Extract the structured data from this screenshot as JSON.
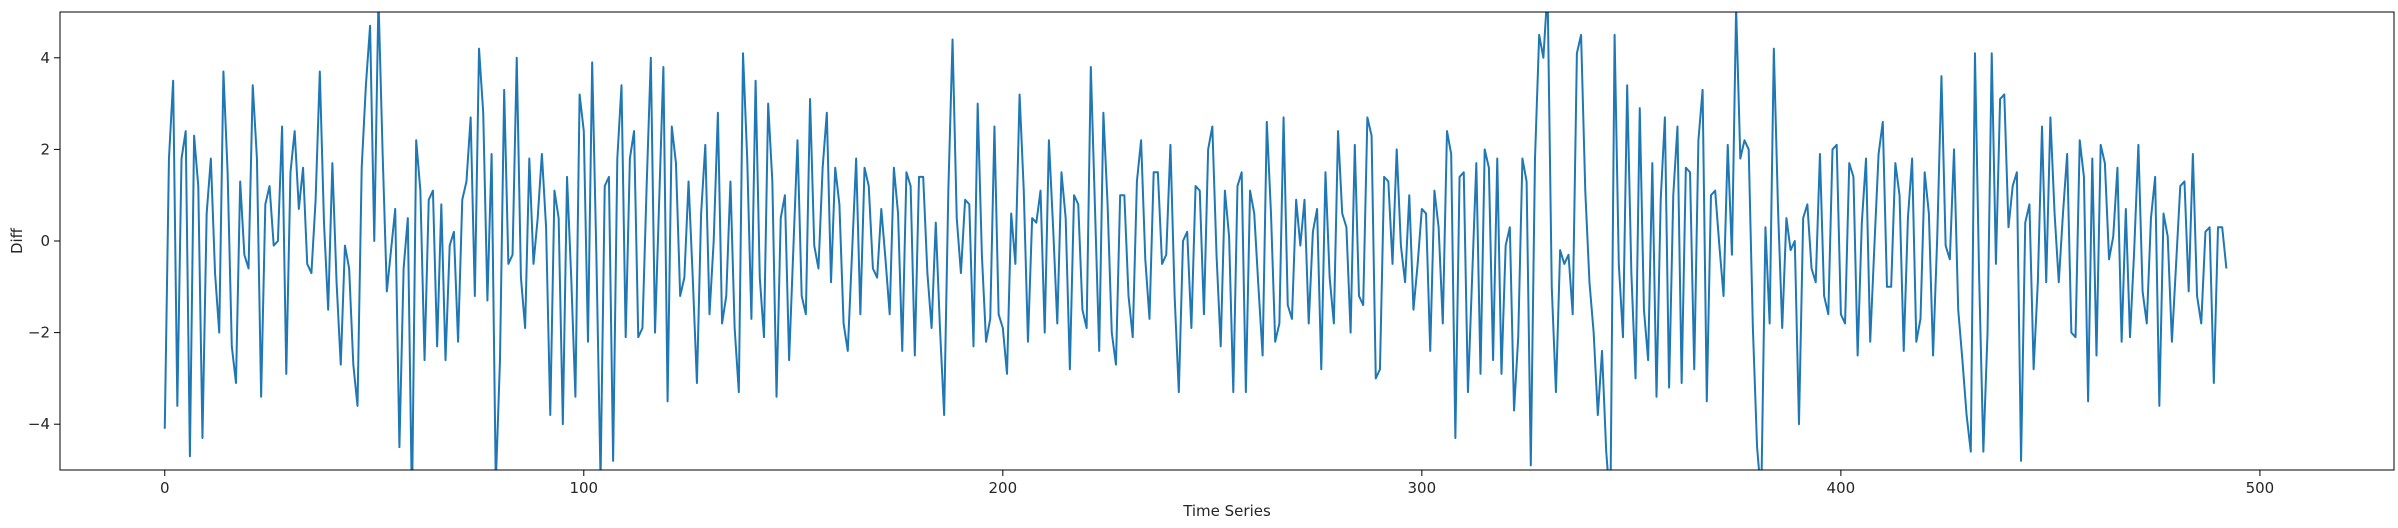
{
  "chart_data": {
    "type": "line",
    "xlabel": "Time Series",
    "ylabel": "Diff",
    "xlim": [
      -25,
      532
    ],
    "ylim": [
      -5,
      5
    ],
    "xticks": [
      0,
      100,
      200,
      300,
      400,
      500
    ],
    "yticks": [
      -4,
      -2,
      0,
      2,
      4
    ],
    "grid": false,
    "line_color": "#1f77b4",
    "series": [
      {
        "values": [
          -4.1,
          1.8,
          3.5,
          -3.6,
          1.8,
          2.4,
          -4.7,
          2.3,
          1.2,
          -4.3,
          0.6,
          1.8,
          -0.7,
          -2.0,
          3.7,
          1.5,
          -2.3,
          -3.1,
          1.3,
          -0.3,
          -0.6,
          3.4,
          1.8,
          -3.4,
          0.8,
          1.2,
          -0.1,
          0.0,
          2.5,
          -2.9,
          1.5,
          2.4,
          0.7,
          1.6,
          -0.5,
          -0.7,
          0.9,
          3.7,
          0.4,
          -1.5,
          1.7,
          -0.9,
          -2.7,
          -0.1,
          -0.6,
          -2.7,
          -3.6,
          1.6,
          3.4,
          4.7,
          0.0,
          5.3,
          1.9,
          -1.1,
          -0.2,
          0.7,
          -4.5,
          -0.6,
          0.5,
          -5.8,
          2.2,
          1.1,
          -2.6,
          0.9,
          1.1,
          -2.3,
          0.8,
          -2.6,
          -0.1,
          0.2,
          -2.2,
          0.9,
          1.3,
          2.7,
          -1.2,
          4.2,
          2.8,
          -1.3,
          1.9,
          -5.3,
          -2.6,
          3.3,
          -0.5,
          -0.3,
          4.0,
          -0.8,
          -1.9,
          1.8,
          -0.5,
          0.5,
          1.9,
          0.3,
          -3.8,
          1.1,
          0.5,
          -4.0,
          1.4,
          -0.8,
          -3.4,
          3.2,
          2.4,
          -2.2,
          3.9,
          -0.3,
          -5.2,
          1.2,
          1.4,
          -4.8,
          1.8,
          3.4,
          -2.1,
          1.8,
          2.4,
          -2.1,
          -1.9,
          1.2,
          4.0,
          -2.0,
          0.9,
          3.8,
          -3.5,
          2.5,
          1.7,
          -1.2,
          -0.8,
          1.3,
          -0.8,
          -3.1,
          0.6,
          2.1,
          -1.6,
          0.0,
          2.8,
          -1.8,
          -1.2,
          1.3,
          -1.9,
          -3.3,
          4.1,
          1.8,
          -1.7,
          3.5,
          -0.8,
          -2.1,
          3.0,
          1.3,
          -3.4,
          0.5,
          1.0,
          -2.6,
          -0.2,
          2.2,
          -1.2,
          -1.6,
          3.1,
          -0.1,
          -0.6,
          1.6,
          2.8,
          -0.9,
          1.6,
          0.8,
          -1.8,
          -2.4,
          -0.3,
          1.8,
          -1.6,
          1.6,
          1.2,
          -0.6,
          -0.8,
          0.7,
          -0.4,
          -1.6,
          1.6,
          0.6,
          -2.4,
          1.5,
          1.2,
          -2.5,
          1.4,
          1.4,
          -0.7,
          -1.9,
          0.4,
          -1.9,
          -3.8,
          1.1,
          4.4,
          0.5,
          -0.7,
          0.9,
          0.8,
          -2.3,
          3.0,
          -0.3,
          -2.2,
          -1.7,
          2.5,
          -1.6,
          -1.9,
          -2.9,
          0.6,
          -0.5,
          3.2,
          1.1,
          -2.2,
          0.5,
          0.4,
          1.1,
          -2.0,
          2.2,
          0.3,
          -1.8,
          1.5,
          0.5,
          -2.8,
          1.0,
          0.8,
          -1.5,
          -1.9,
          3.8,
          0.7,
          -2.4,
          2.8,
          0.8,
          -2.0,
          -2.7,
          1.0,
          1.0,
          -1.2,
          -2.1,
          1.3,
          2.2,
          -0.4,
          -1.7,
          1.5,
          1.5,
          -0.5,
          -0.3,
          2.1,
          -1.2,
          -3.3,
          0.0,
          0.2,
          -1.9,
          1.2,
          1.1,
          -1.6,
          2.0,
          2.5,
          -0.3,
          -2.3,
          1.1,
          0.1,
          -3.3,
          1.2,
          1.5,
          -3.3,
          1.1,
          0.6,
          -1.0,
          -2.5,
          2.6,
          0.6,
          -2.2,
          -1.8,
          2.7,
          -1.4,
          -1.7,
          0.9,
          -0.1,
          0.9,
          -1.8,
          0.2,
          0.7,
          -2.8,
          1.5,
          -0.8,
          -1.8,
          2.4,
          0.6,
          0.3,
          -2.0,
          2.1,
          -1.2,
          -1.4,
          2.7,
          2.3,
          -3.0,
          -2.8,
          1.4,
          1.3,
          -0.5,
          2.0,
          -0.1,
          -0.9,
          1.0,
          -1.5,
          -0.5,
          0.7,
          0.6,
          -2.4,
          1.1,
          0.3,
          -1.8,
          2.4,
          1.9,
          -4.3,
          1.4,
          1.5,
          -3.3,
          -0.8,
          1.7,
          -2.9,
          2.0,
          1.6,
          -2.6,
          1.8,
          -2.9,
          -0.1,
          0.3,
          -3.7,
          -2.1,
          1.8,
          1.3,
          -4.9,
          1.8,
          4.5,
          4.0,
          5.5,
          -1.0,
          -3.3,
          -0.2,
          -0.5,
          -0.3,
          -1.6,
          4.1,
          4.5,
          1.1,
          -0.9,
          -2.0,
          -3.8,
          -2.4,
          -4.6,
          -5.8,
          4.5,
          -0.5,
          -2.1,
          3.4,
          -0.7,
          -3.0,
          2.9,
          -1.5,
          -2.6,
          1.7,
          -3.4,
          0.9,
          2.7,
          -3.2,
          1.0,
          2.5,
          -3.1,
          1.6,
          1.5,
          -2.8,
          2.2,
          3.3,
          -3.5,
          1.0,
          1.1,
          -0.1,
          -1.2,
          2.1,
          -0.3,
          5.1,
          1.8,
          2.2,
          2.0,
          -1.9,
          -4.5,
          -5.6,
          0.3,
          -1.8,
          4.2,
          0.7,
          -1.9,
          0.5,
          -0.2,
          0.0,
          -4.0,
          0.5,
          0.8,
          -0.6,
          -0.9,
          1.9,
          -1.2,
          -1.6,
          2.0,
          2.1,
          -1.6,
          -1.8,
          1.7,
          1.4,
          -2.5,
          0.4,
          1.8,
          -2.2,
          -0.1,
          1.9,
          2.6,
          -1.0,
          -1.0,
          1.7,
          1.0,
          -2.4,
          0.5,
          1.8,
          -2.2,
          -1.7,
          1.5,
          0.6,
          -2.5,
          0.1,
          3.6,
          -0.1,
          -0.4,
          2.0,
          -1.5,
          -2.6,
          -3.8,
          -4.6,
          4.1,
          -0.8,
          -4.6,
          -2.0,
          4.1,
          -0.5,
          3.1,
          3.2,
          0.3,
          1.2,
          1.5,
          -4.8,
          0.4,
          0.8,
          -2.8,
          -0.9,
          2.5,
          -0.9,
          2.7,
          0.6,
          -0.9,
          0.6,
          1.9,
          -2.0,
          -2.1,
          2.2,
          1.4,
          -3.5,
          1.8,
          -2.5,
          2.1,
          1.7,
          -0.4,
          0.1,
          1.6,
          -2.2,
          0.7,
          -2.1,
          -0.2,
          2.1,
          -1.1,
          -1.8,
          0.5,
          1.4,
          -3.6,
          0.6,
          0.1,
          -2.2,
          -0.5,
          1.2,
          1.3,
          -1.1,
          1.9,
          -1.2,
          -1.8,
          0.2,
          0.3,
          -3.1,
          0.3,
          0.3,
          -0.6
        ]
      }
    ]
  }
}
